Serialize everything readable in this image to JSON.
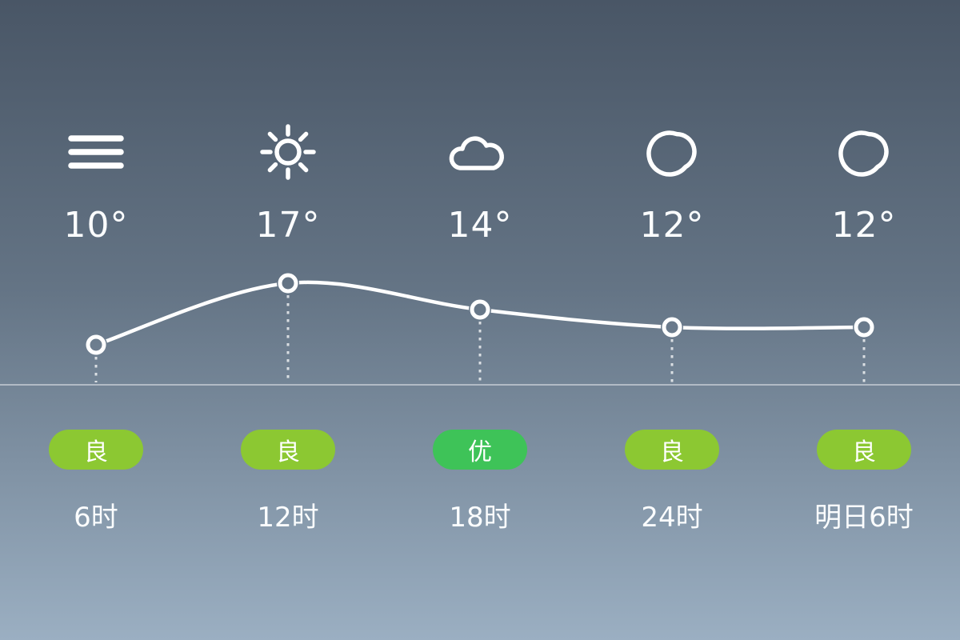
{
  "app": {
    "name": "hourly-weather-forecast"
  },
  "columns": [
    {
      "icon": "haze-icon",
      "condition": "haze",
      "temp": "10°",
      "aqi": "良",
      "aqi_level": "good",
      "time": "6时"
    },
    {
      "icon": "sunny-icon",
      "condition": "sunny",
      "temp": "17°",
      "aqi": "良",
      "aqi_level": "good",
      "time": "12时"
    },
    {
      "icon": "cloudy-icon",
      "condition": "cloudy",
      "temp": "14°",
      "aqi": "优",
      "aqi_level": "excellent",
      "time": "18时"
    },
    {
      "icon": "moon-clear-icon",
      "condition": "clear-night",
      "temp": "12°",
      "aqi": "良",
      "aqi_level": "good",
      "time": "24时"
    },
    {
      "icon": "moon-clear-icon",
      "condition": "clear-night",
      "temp": "12°",
      "aqi": "良",
      "aqi_level": "good",
      "time": "明日6时"
    }
  ],
  "chart_data": {
    "type": "line",
    "x": [
      "6时",
      "12时",
      "18时",
      "24时",
      "明日6时"
    ],
    "series": [
      {
        "name": "temperature",
        "values": [
          10,
          17,
          14,
          12,
          12
        ],
        "unit": "°"
      }
    ],
    "ylim": [
      10,
      17
    ],
    "grid": false,
    "markers": "open-circle",
    "line_color": "#FFFFFF",
    "drop_lines": "dashed"
  },
  "colors": {
    "background_top": "#495666",
    "background_bottom": "#9BAFC2",
    "aqi_good": "#8CC832",
    "aqi_excellent": "#3EC358",
    "text": "#FFFFFF",
    "chart_line": "#FFFFFF",
    "separator": "rgba(255,255,255,0.45)"
  }
}
